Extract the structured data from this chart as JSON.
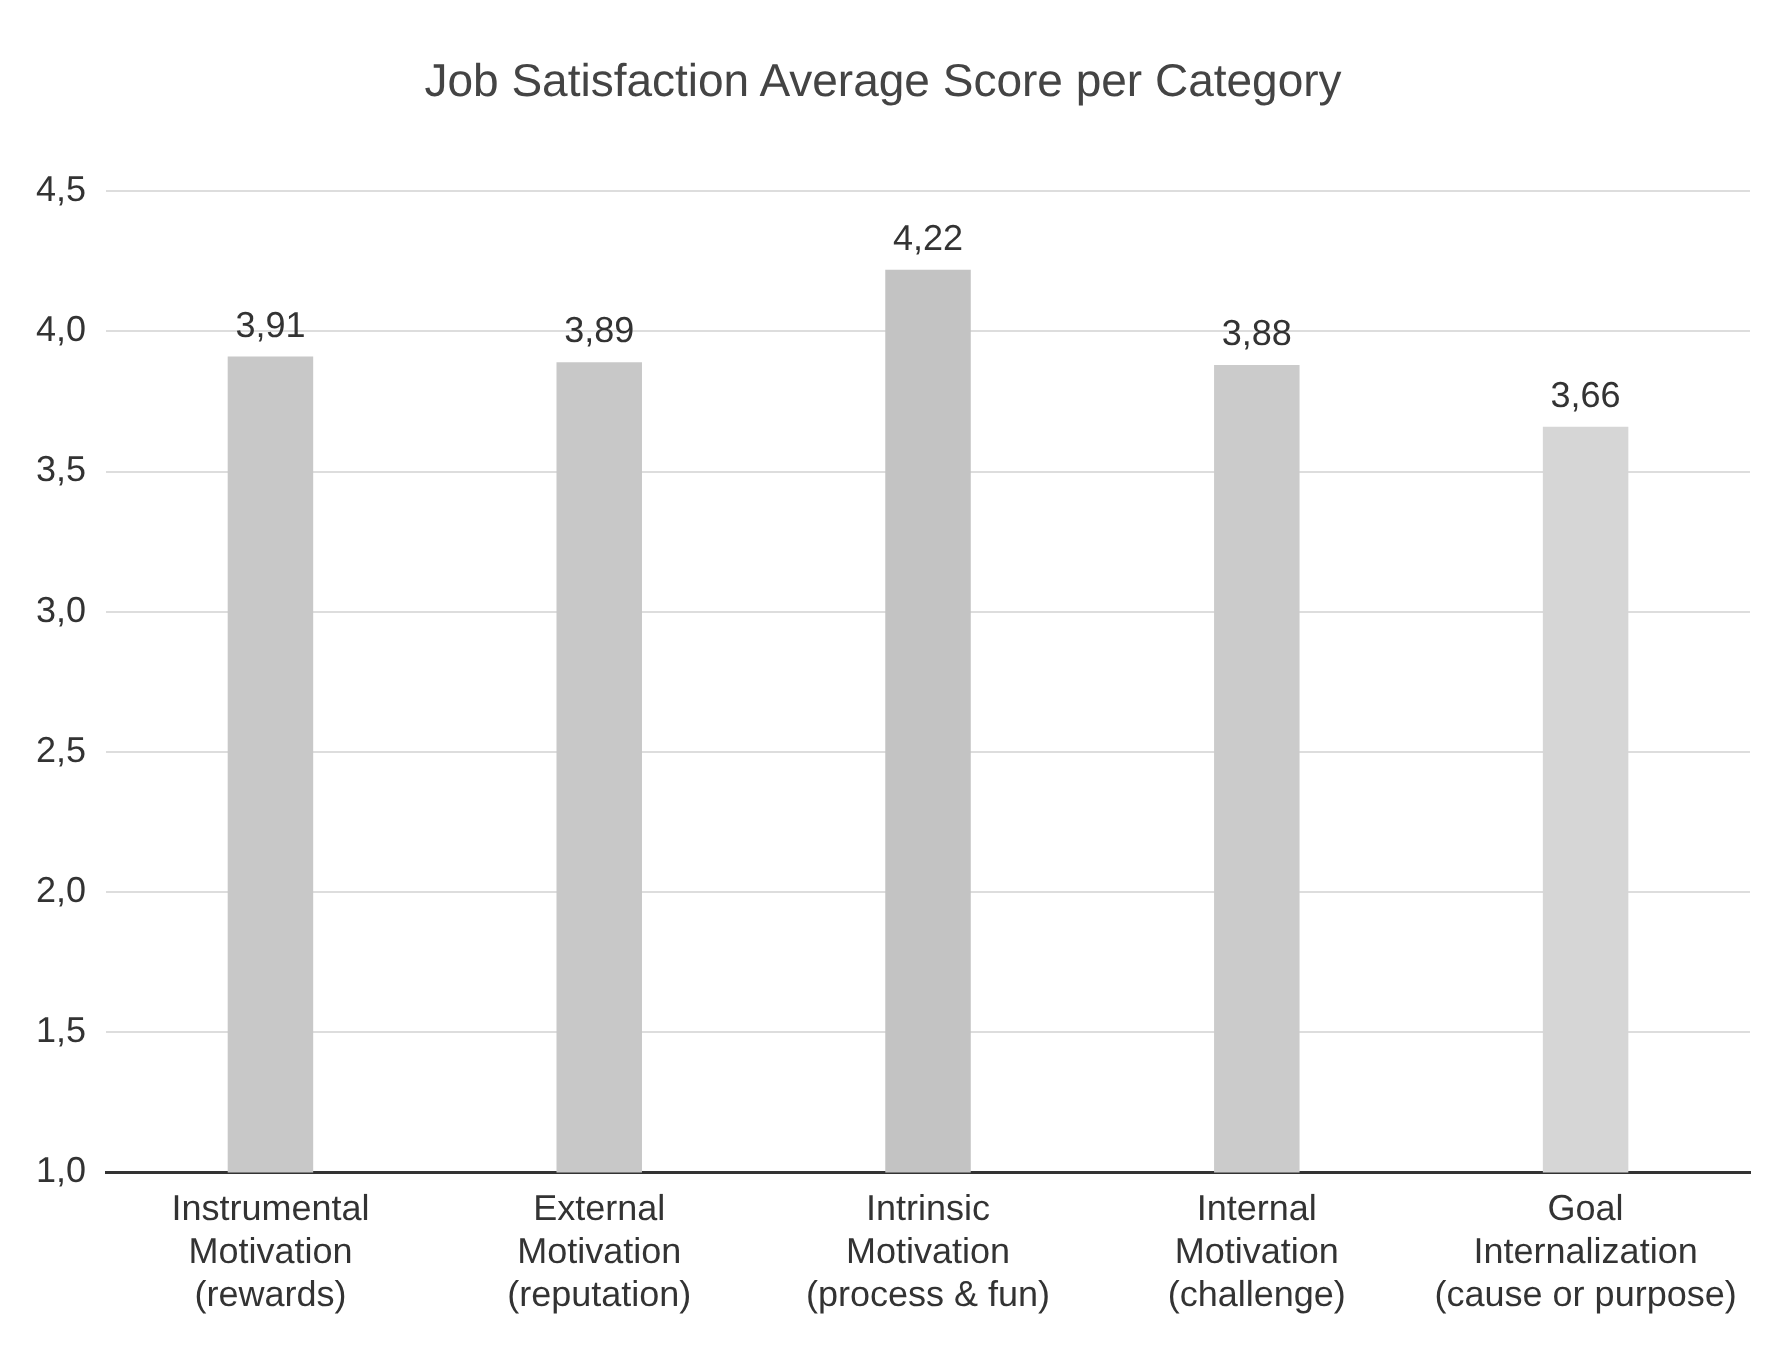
{
  "chart_data": {
    "type": "bar",
    "title": "Job Satisfaction Average Score per Category",
    "categories": [
      "Instrumental\nMotivation\n(rewards)",
      "External\nMotivation\n(reputation)",
      "Intrinsic\nMotivation\n(process & fun)",
      "Internal\nMotivation\n(challenge)",
      "Goal\nInternalization\n(cause or purpose)"
    ],
    "values": [
      3.91,
      3.89,
      4.22,
      3.88,
      3.66
    ],
    "value_labels": [
      "3,91",
      "3,89",
      "4,22",
      "3,88",
      "3,66"
    ],
    "colors": [
      "#c8c8c8",
      "#c8c8c8",
      "#c3c3c3",
      "#cbcbcb",
      "#d6d6d6"
    ],
    "ylim": [
      1.0,
      4.5
    ],
    "yticks": [
      {
        "value": 1.0,
        "label": "1,0"
      },
      {
        "value": 1.5,
        "label": "1,5"
      },
      {
        "value": 2.0,
        "label": "2,0"
      },
      {
        "value": 2.5,
        "label": "2,5"
      },
      {
        "value": 3.0,
        "label": "3,0"
      },
      {
        "value": 3.5,
        "label": "3,5"
      },
      {
        "value": 4.0,
        "label": "4,0"
      },
      {
        "value": 4.5,
        "label": "4,5"
      }
    ],
    "grid": "y"
  }
}
